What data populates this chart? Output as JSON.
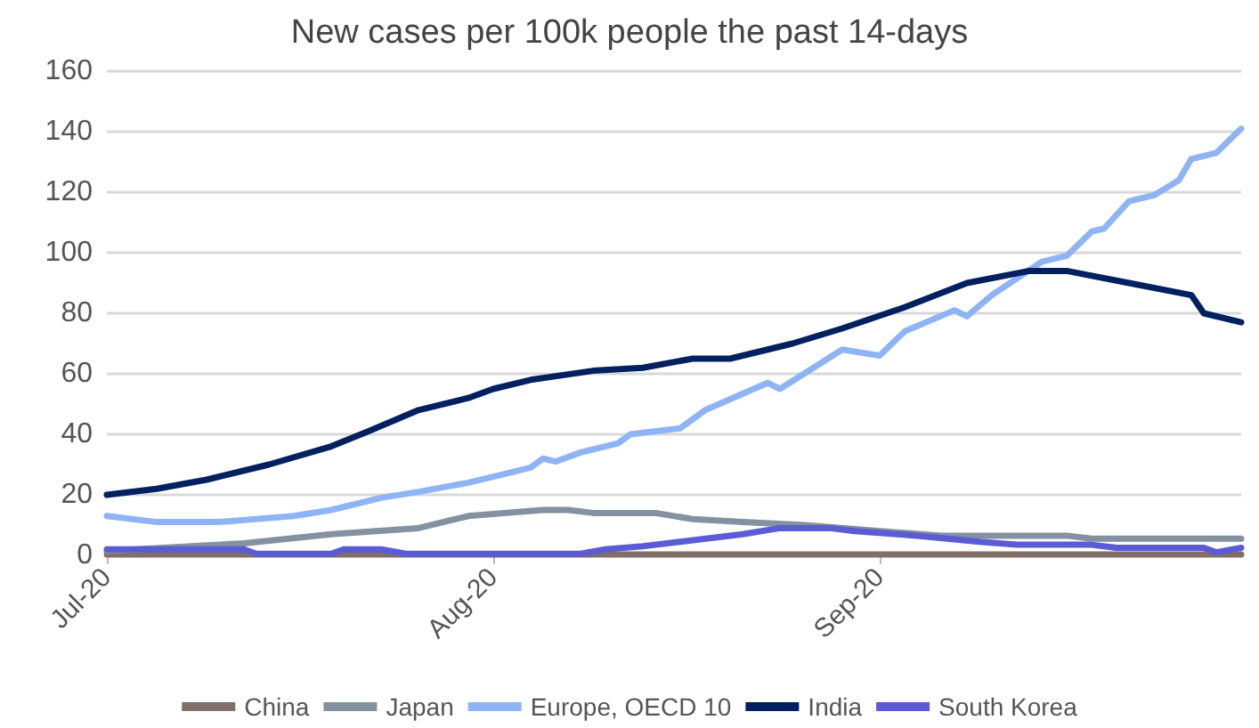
{
  "chart_data": {
    "type": "line",
    "title": "New cases per 100k people the past 14-days",
    "xlim": [
      "2020-07-01",
      "2020-09-30"
    ],
    "xticks": [
      {
        "value": "2020-07-01",
        "label": "Jul-20"
      },
      {
        "value": "2020-08-01",
        "label": "Aug-20"
      },
      {
        "value": "2020-09-01",
        "label": "Sep-20"
      }
    ],
    "ylim": [
      0,
      160
    ],
    "yticks": [
      0,
      20,
      40,
      60,
      80,
      100,
      120,
      140,
      160
    ],
    "grid": "y",
    "legend": "bottom",
    "marker": "none",
    "line_style": "solid",
    "series": [
      {
        "name": "China",
        "color": "#7f6f68",
        "x": [
          "2020-07-01",
          "2020-09-30"
        ],
        "values": [
          0.3,
          0.3
        ]
      },
      {
        "name": "Japan",
        "color": "#8391a1",
        "x": [
          "2020-07-01",
          "2020-07-12",
          "2020-07-19",
          "2020-07-26",
          "2020-07-30",
          "2020-08-05",
          "2020-08-07",
          "2020-08-09",
          "2020-08-14",
          "2020-08-17",
          "2020-08-21",
          "2020-08-26",
          "2020-09-01",
          "2020-09-06",
          "2020-09-16",
          "2020-09-18",
          "2020-09-30"
        ],
        "values": [
          1.5,
          4,
          7,
          9,
          13,
          15,
          15,
          14,
          14,
          12,
          11,
          10,
          8,
          6.5,
          6.5,
          5.5,
          5.5
        ]
      },
      {
        "name": "Europe, OECD 10",
        "color": "#8fb4f5",
        "x": [
          "2020-07-01",
          "2020-07-05",
          "2020-07-10",
          "2020-07-16",
          "2020-07-19",
          "2020-07-23",
          "2020-07-26",
          "2020-07-30",
          "2020-08-03",
          "2020-08-04",
          "2020-08-05",
          "2020-08-06",
          "2020-08-08",
          "2020-08-11",
          "2020-08-12",
          "2020-08-16",
          "2020-08-18",
          "2020-08-23",
          "2020-08-24",
          "2020-08-29",
          "2020-09-01",
          "2020-09-03",
          "2020-09-07",
          "2020-09-08",
          "2020-09-10",
          "2020-09-14",
          "2020-09-16",
          "2020-09-18",
          "2020-09-19",
          "2020-09-21",
          "2020-09-23",
          "2020-09-25",
          "2020-09-26",
          "2020-09-28",
          "2020-09-30"
        ],
        "values": [
          13,
          11,
          11,
          13,
          15,
          19,
          21,
          24,
          28,
          29,
          32,
          31,
          34,
          37,
          40,
          42,
          48,
          57,
          55,
          68,
          66,
          74,
          81,
          79,
          86,
          97,
          99,
          107,
          108,
          117,
          119,
          124,
          131,
          133,
          141
        ]
      },
      {
        "name": "India",
        "color": "#002060",
        "x": [
          "2020-07-01",
          "2020-07-05",
          "2020-07-09",
          "2020-07-14",
          "2020-07-19",
          "2020-07-22",
          "2020-07-26",
          "2020-07-30",
          "2020-08-01",
          "2020-08-04",
          "2020-08-09",
          "2020-08-13",
          "2020-08-17",
          "2020-08-20",
          "2020-08-25",
          "2020-08-29",
          "2020-09-03",
          "2020-09-08",
          "2020-09-13",
          "2020-09-16",
          "2020-09-21",
          "2020-09-26",
          "2020-09-27",
          "2020-09-30"
        ],
        "values": [
          20,
          22,
          25,
          30,
          36,
          41,
          48,
          52,
          55,
          58,
          61,
          62,
          65,
          65,
          70,
          75,
          82,
          90,
          94,
          94,
          90,
          86,
          80,
          77
        ]
      },
      {
        "name": "South Korea",
        "color": "#5b5bd6",
        "x": [
          "2020-07-01",
          "2020-07-12",
          "2020-07-13",
          "2020-07-19",
          "2020-07-20",
          "2020-07-23",
          "2020-07-25",
          "2020-08-08",
          "2020-08-10",
          "2020-08-13",
          "2020-08-16",
          "2020-08-21",
          "2020-08-24",
          "2020-08-28",
          "2020-08-30",
          "2020-09-04",
          "2020-09-09",
          "2020-09-12",
          "2020-09-18",
          "2020-09-20",
          "2020-09-27",
          "2020-09-28",
          "2020-09-30"
        ],
        "values": [
          2,
          2,
          0.5,
          0.5,
          2,
          2,
          0.5,
          0.5,
          2,
          3,
          4.5,
          7,
          9,
          9,
          8,
          6.5,
          4.5,
          3.5,
          3.5,
          2.5,
          2.5,
          1,
          2.5
        ]
      }
    ]
  }
}
